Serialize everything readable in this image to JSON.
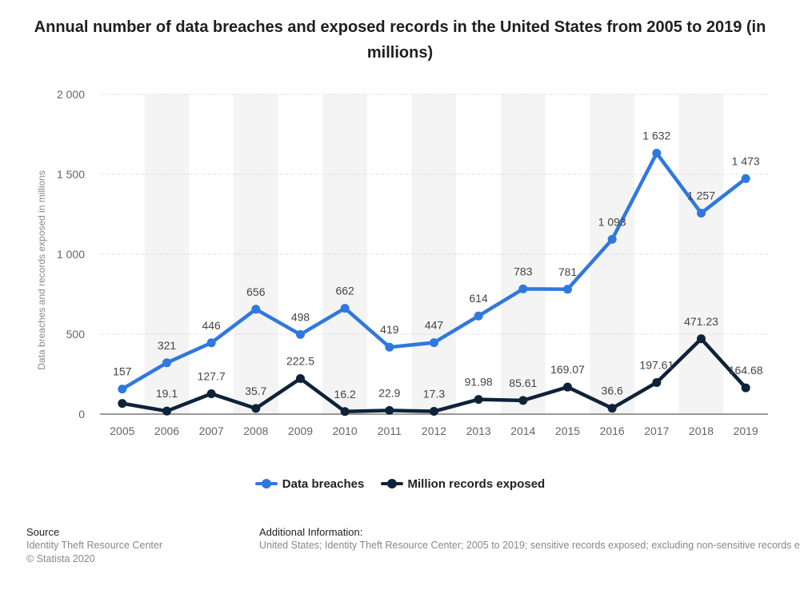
{
  "title": "Annual number of data breaches and exposed records in the United States from 2005 to 2019 (in millions)",
  "legend": {
    "breaches_label": "Data breaches",
    "records_label": "Million records exposed"
  },
  "source": {
    "heading": "Source",
    "line1": "Identity Theft Resource Center",
    "line2": "© Statista 2020"
  },
  "additional_info": {
    "heading": "Additional Information:",
    "text": "United States; Identity Theft Resource Center; 2005 to 2019; sensitive records exposed; excluding non-sensitive records exposed"
  },
  "colors": {
    "breaches": "#2f78de",
    "records": "#0e2239",
    "band": "#f4f4f4",
    "grid": "#c9c9c9"
  },
  "chart_data": {
    "type": "line",
    "x": [
      "2005",
      "2006",
      "2007",
      "2008",
      "2009",
      "2010",
      "2011",
      "2012",
      "2013",
      "2014",
      "2015",
      "2016",
      "2017",
      "2018",
      "2019"
    ],
    "ylabel": "Data breaches and records exposed in millions",
    "ylim": [
      0,
      2000
    ],
    "yticks": [
      0,
      500,
      1000,
      1500,
      2000
    ],
    "ytick_labels": [
      "0",
      "500",
      "1 000",
      "1 500",
      "2 000"
    ],
    "grid": true,
    "legend_position": "bottom",
    "series": [
      {
        "name": "Data breaches",
        "values": [
          157,
          321,
          446,
          656,
          498,
          662,
          419,
          447,
          614,
          783,
          781,
          1093,
          1632,
          1257,
          1473
        ],
        "labels": [
          "157",
          "321",
          "446",
          "656",
          "498",
          "662",
          "419",
          "447",
          "614",
          "783",
          "781",
          "1 093",
          "1 632",
          "1 257",
          "1 473"
        ]
      },
      {
        "name": "Million records exposed",
        "values": [
          66.9,
          19.1,
          127.7,
          35.7,
          222.5,
          16.2,
          22.9,
          17.3,
          91.98,
          85.61,
          169.07,
          36.6,
          197.61,
          471.23,
          164.68
        ],
        "labels": [
          "",
          "19.1",
          "127.7",
          "35.7",
          "222.5",
          "16.2",
          "22.9",
          "17.3",
          "91.98",
          "85.61",
          "169.07",
          "36.6",
          "197.61",
          "471.23",
          "164.68"
        ]
      }
    ]
  }
}
